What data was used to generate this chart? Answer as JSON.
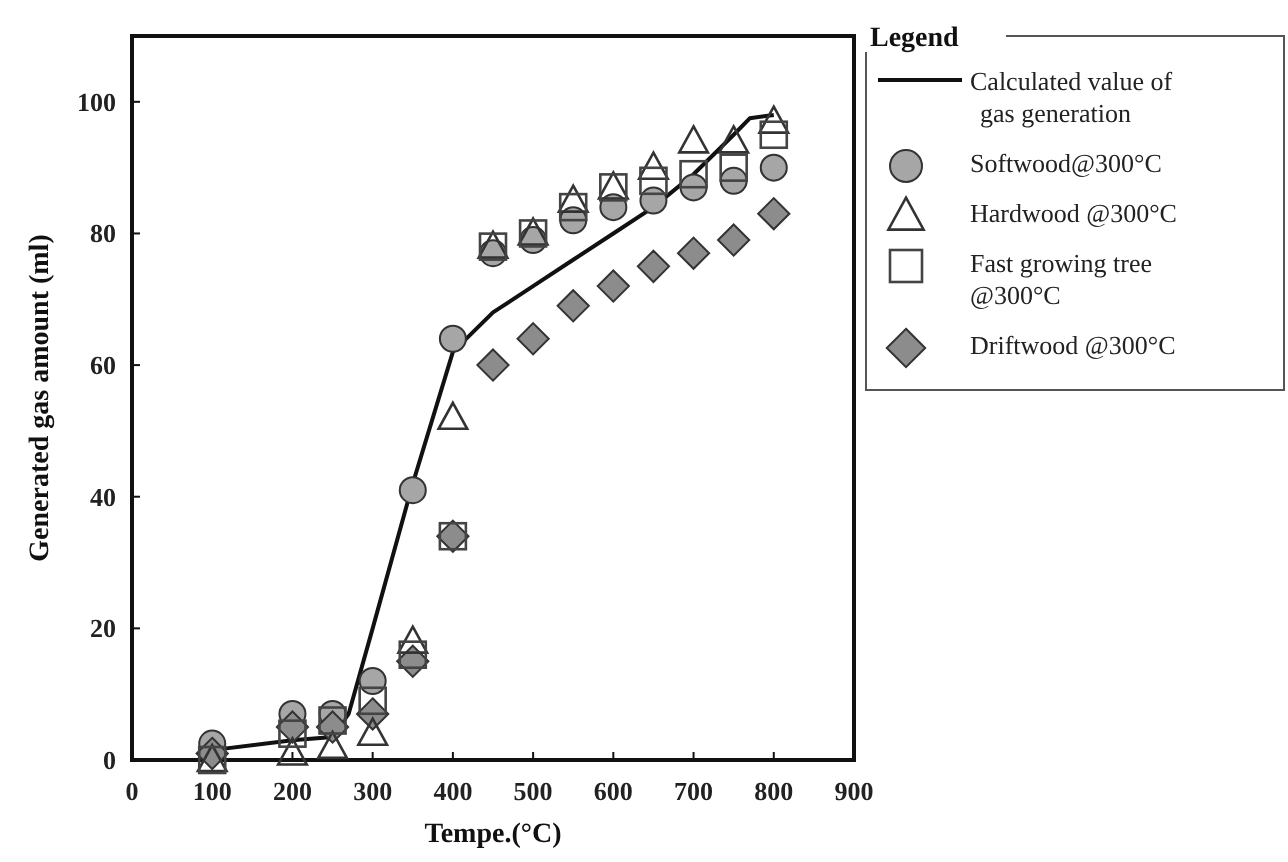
{
  "chart_data": {
    "type": "scatter",
    "xlabel": "Tempe.(°C)",
    "ylabel": "Generated gas amount  (ml)",
    "legend_title": "Legend",
    "legend": "right",
    "grid": false,
    "xlim": [
      0,
      900
    ],
    "xticks": [
      0,
      100,
      200,
      300,
      400,
      500,
      600,
      700,
      800,
      900
    ],
    "ylim": [
      0,
      110
    ],
    "yticks": [
      0,
      20,
      40,
      60,
      80,
      100
    ],
    "series": [
      {
        "name": "Calculated value of gas generation",
        "type": "line",
        "marker": "none",
        "color": "#111111",
        "x": [
          100,
          200,
          250,
          270,
          300,
          350,
          400,
          450,
          500,
          550,
          600,
          650,
          700,
          750,
          770,
          800
        ],
        "values": [
          1.5,
          3,
          3.5,
          7,
          20,
          42,
          62,
          68,
          72,
          76,
          80,
          84,
          89,
          95,
          97.5,
          98
        ]
      },
      {
        "name": "Softwood@300°C",
        "marker": "circle",
        "color": "#a6a6a6",
        "x": [
          100,
          200,
          250,
          300,
          350,
          400,
          450,
          500,
          550,
          600,
          650,
          700,
          750,
          800
        ],
        "values": [
          2.5,
          7,
          7,
          12,
          41,
          64,
          77,
          79,
          82,
          84,
          85,
          87,
          88,
          90
        ]
      },
      {
        "name": "Hardwood @300°C",
        "marker": "triangle",
        "color": "#333333",
        "x": [
          100,
          200,
          250,
          300,
          350,
          400,
          450,
          500,
          550,
          600,
          650,
          700,
          750,
          800
        ],
        "values": [
          0,
          1,
          2,
          4,
          18,
          52,
          78,
          80,
          85,
          87,
          90,
          94,
          94,
          97
        ]
      },
      {
        "name": "Fast growing tree @300°C",
        "marker": "square",
        "color": "#444444",
        "x": [
          100,
          200,
          250,
          300,
          350,
          400,
          450,
          500,
          550,
          600,
          650,
          700,
          750,
          800
        ],
        "values": [
          0,
          4,
          6,
          9,
          16,
          34,
          78,
          80,
          84,
          87,
          88,
          89,
          90,
          95
        ]
      },
      {
        "name": "Driftwood @300°C",
        "marker": "diamond",
        "color": "#8c8c8c",
        "x": [
          100,
          200,
          250,
          300,
          350,
          400,
          450,
          500,
          550,
          600,
          650,
          700,
          750,
          800
        ],
        "values": [
          1,
          5,
          5,
          7,
          15,
          34,
          60,
          64,
          69,
          72,
          75,
          77,
          79,
          83
        ]
      }
    ]
  }
}
